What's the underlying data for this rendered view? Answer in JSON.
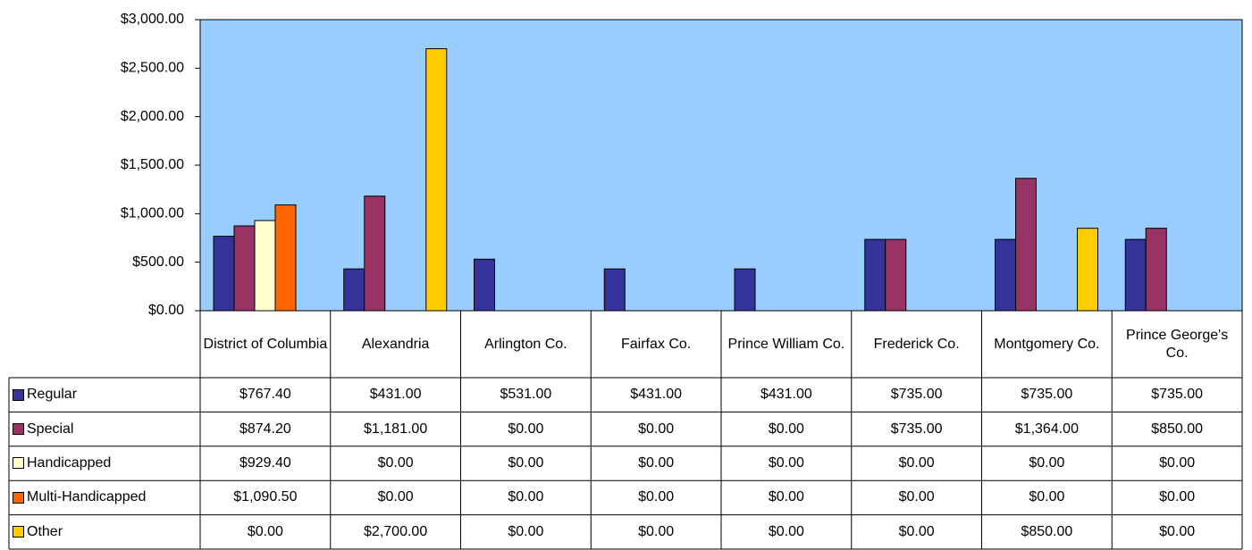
{
  "chart_data": {
    "type": "bar",
    "categories": [
      "District of Columbia",
      "Alexandria",
      "Arlington Co.",
      "Fairfax Co.",
      "Prince William Co.",
      "Frederick Co.",
      "Montgomery Co.",
      "Prince George's Co."
    ],
    "series": [
      {
        "name": "Regular",
        "color": "#333399",
        "values": [
          767.4,
          431,
          531,
          431,
          431,
          735,
          735,
          735
        ],
        "value_labels": [
          "$767.40",
          "$431.00",
          "$531.00",
          "$431.00",
          "$431.00",
          "$735.00",
          "$735.00",
          "$735.00"
        ]
      },
      {
        "name": "Special",
        "color": "#993366",
        "values": [
          874.2,
          1181,
          0,
          0,
          0,
          735,
          1364,
          850
        ],
        "value_labels": [
          "$874.20",
          "$1,181.00",
          "$0.00",
          "$0.00",
          "$0.00",
          "$735.00",
          "$1,364.00",
          "$850.00"
        ]
      },
      {
        "name": "Handicapped",
        "color": "#ffffcc",
        "values": [
          929.4,
          0,
          0,
          0,
          0,
          0,
          0,
          0
        ],
        "value_labels": [
          "$929.40",
          "$0.00",
          "$0.00",
          "$0.00",
          "$0.00",
          "$0.00",
          "$0.00",
          "$0.00"
        ]
      },
      {
        "name": "Multi-Handicapped",
        "color": "#ff6600",
        "values": [
          1090.5,
          0,
          0,
          0,
          0,
          0,
          0,
          0
        ],
        "value_labels": [
          "$1,090.50",
          "$0.00",
          "$0.00",
          "$0.00",
          "$0.00",
          "$0.00",
          "$0.00",
          "$0.00"
        ]
      },
      {
        "name": "Other",
        "color": "#ffcc00",
        "values": [
          0,
          2700,
          0,
          0,
          0,
          0,
          850,
          0
        ],
        "value_labels": [
          "$0.00",
          "$2,700.00",
          "$0.00",
          "$0.00",
          "$0.00",
          "$0.00",
          "$850.00",
          "$0.00"
        ]
      }
    ],
    "ylim": [
      0,
      3000
    ],
    "yticks": [
      {
        "value": 0,
        "label": "$0.00"
      },
      {
        "value": 500,
        "label": "$500.00"
      },
      {
        "value": 1000,
        "label": "$1,000.00"
      },
      {
        "value": 1500,
        "label": "$1,500.00"
      },
      {
        "value": 2000,
        "label": "$2,000.00"
      },
      {
        "value": 2500,
        "label": "$2,500.00"
      },
      {
        "value": 3000,
        "label": "$3,000.00"
      }
    ],
    "plot_background": "#99ccff"
  }
}
